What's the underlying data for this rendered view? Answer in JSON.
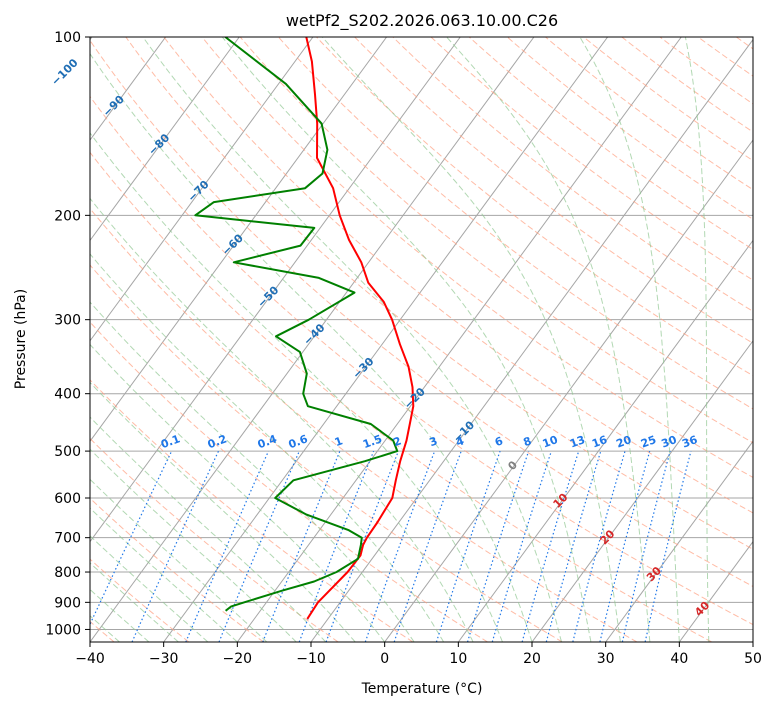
{
  "chart_data": {
    "type": "line",
    "title": "wetPf2_S202.2026.063.10.00.C26",
    "xlabel": "Temperature (°C)",
    "ylabel": "Pressure (hPa)",
    "xlim": [
      -40,
      50
    ],
    "ylim": [
      1050,
      100
    ],
    "y_scale": "log",
    "skew": "skew-T log-p diagram",
    "x_ticks": [
      "−40",
      "−30",
      "−20",
      "−10",
      "0",
      "10",
      "20",
      "30",
      "40",
      "50"
    ],
    "x_tick_values": [
      -40,
      -30,
      -20,
      -10,
      0,
      10,
      20,
      30,
      40,
      50
    ],
    "y_ticks": [
      "100",
      "200",
      "300",
      "400",
      "500",
      "600",
      "700",
      "800",
      "900",
      "1000"
    ],
    "y_tick_values": [
      100,
      200,
      300,
      400,
      500,
      600,
      700,
      800,
      900,
      1000
    ],
    "grid": true,
    "series": [
      {
        "color": "#ff0000",
        "points": [
          {
            "p": 960,
            "t": -12.8
          },
          {
            "p": 900,
            "t": -13.0
          },
          {
            "p": 800,
            "t": -12.0
          },
          {
            "p": 750,
            "t": -11.9
          },
          {
            "p": 720,
            "t": -12.6
          },
          {
            "p": 700,
            "t": -12.8
          },
          {
            "p": 660,
            "t": -12.9
          },
          {
            "p": 600,
            "t": -13.3
          },
          {
            "p": 560,
            "t": -14.6
          },
          {
            "p": 520,
            "t": -15.9
          },
          {
            "p": 480,
            "t": -17.1
          },
          {
            "p": 450,
            "t": -18.3
          },
          {
            "p": 420,
            "t": -19.6
          },
          {
            "p": 390,
            "t": -21.6
          },
          {
            "p": 360,
            "t": -24.2
          },
          {
            "p": 330,
            "t": -27.6
          },
          {
            "p": 300,
            "t": -31.1
          },
          {
            "p": 280,
            "t": -34.0
          },
          {
            "p": 260,
            "t": -38.0
          },
          {
            "p": 240,
            "t": -41.0
          },
          {
            "p": 220,
            "t": -44.9
          },
          {
            "p": 200,
            "t": -48.6
          },
          {
            "p": 180,
            "t": -52.2
          },
          {
            "p": 160,
            "t": -57.4
          },
          {
            "p": 140,
            "t": -60.8
          },
          {
            "p": 125,
            "t": -64.0
          },
          {
            "p": 110,
            "t": -67.7
          },
          {
            "p": 100,
            "t": -70.9
          }
        ]
      },
      {
        "color": "#008000",
        "points": [
          {
            "p": 930,
            "t": -24.7
          },
          {
            "p": 915,
            "t": -24.4
          },
          {
            "p": 900,
            "t": -23.0
          },
          {
            "p": 860,
            "t": -19.0
          },
          {
            "p": 830,
            "t": -15.6
          },
          {
            "p": 800,
            "t": -13.5
          },
          {
            "p": 760,
            "t": -11.9
          },
          {
            "p": 720,
            "t": -12.9
          },
          {
            "p": 700,
            "t": -13.5
          },
          {
            "p": 680,
            "t": -16.0
          },
          {
            "p": 640,
            "t": -23.3
          },
          {
            "p": 600,
            "t": -29.2
          },
          {
            "p": 560,
            "t": -28.5
          },
          {
            "p": 520,
            "t": -20.7
          },
          {
            "p": 500,
            "t": -17.3
          },
          {
            "p": 480,
            "t": -18.9
          },
          {
            "p": 450,
            "t": -23.6
          },
          {
            "p": 420,
            "t": -33.9
          },
          {
            "p": 400,
            "t": -35.8
          },
          {
            "p": 370,
            "t": -37.3
          },
          {
            "p": 340,
            "t": -40.4
          },
          {
            "p": 320,
            "t": -45.2
          },
          {
            "p": 300,
            "t": -42.4
          },
          {
            "p": 270,
            "t": -38.9
          },
          {
            "p": 255,
            "t": -45.2
          },
          {
            "p": 240,
            "t": -58.3
          },
          {
            "p": 225,
            "t": -50.9
          },
          {
            "p": 210,
            "t": -50.8
          },
          {
            "p": 200,
            "t": -68.2
          },
          {
            "p": 190,
            "t": -67.0
          },
          {
            "p": 180,
            "t": -56.0
          },
          {
            "p": 170,
            "t": -55.1
          },
          {
            "p": 155,
            "t": -56.8
          },
          {
            "p": 140,
            "t": -60.2
          },
          {
            "p": 120,
            "t": -69.0
          },
          {
            "p": 100,
            "t": -81.9
          }
        ]
      }
    ],
    "isotherm_labels": [
      "−100",
      "−90",
      "−80",
      "−70",
      "−60",
      "−50",
      "−40",
      "−30",
      "−20",
      "−10",
      "0",
      "10",
      "20",
      "30",
      "40"
    ],
    "isotherm_label_values": [
      -100,
      -90,
      -80,
      -70,
      -60,
      -50,
      -40,
      -30,
      -20,
      -10,
      0,
      10,
      20,
      30,
      40
    ],
    "mixing_ratio_labels": [
      "0.1",
      "0.2",
      "0.4",
      "0.6",
      "1",
      "1.5",
      "2",
      "3",
      "4",
      "6",
      "8",
      "10",
      "13",
      "16",
      "20",
      "25",
      "30",
      "36"
    ],
    "mixing_ratio_values": [
      0.1,
      0.2,
      0.4,
      0.6,
      1,
      1.5,
      2,
      3,
      4,
      6,
      8,
      10,
      13,
      16,
      20,
      25,
      30,
      36
    ],
    "colors": {
      "temperature": "#ff0000",
      "dewpoint": "#008000",
      "isotherm": "#a6a6a6",
      "dry_adiabat": "#ff9f80",
      "moist_adiabat": "#92c793",
      "mixing_ratio": "#1f77e8",
      "cold_label": "#1f6eb5",
      "zero_label": "#808080",
      "warm_label": "#d62728"
    }
  }
}
